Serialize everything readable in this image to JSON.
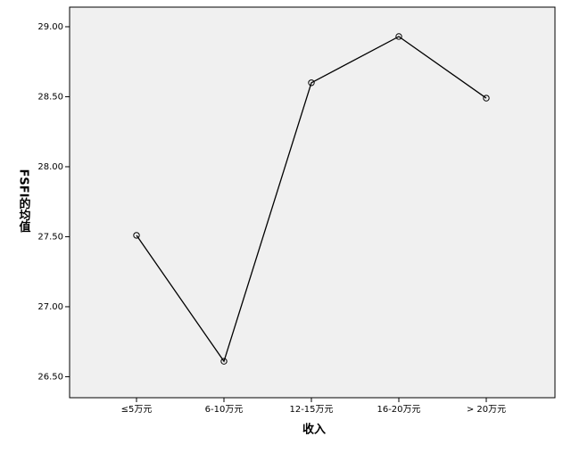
{
  "chart_data": {
    "type": "line",
    "x_label": "收入",
    "y_label": "FSFI的均值",
    "categories": [
      "≤5万元",
      "6-10万元",
      "12-15万元",
      "16-20万元",
      "> 20万元"
    ],
    "values": [
      27.51,
      26.61,
      28.6,
      28.93,
      28.49
    ],
    "color": "#000000",
    "ylim": [
      26.35,
      29.14
    ],
    "yticks": [
      {
        "value": 26.5,
        "label": "26.50"
      },
      {
        "value": 27,
        "label": "27.00"
      },
      {
        "value": 27.5,
        "label": "27.50"
      },
      {
        "value": 28,
        "label": "28.00"
      },
      {
        "value": 28.5,
        "label": "28.50"
      },
      {
        "value": 29,
        "label": "29.00"
      }
    ],
    "grid": false
  }
}
